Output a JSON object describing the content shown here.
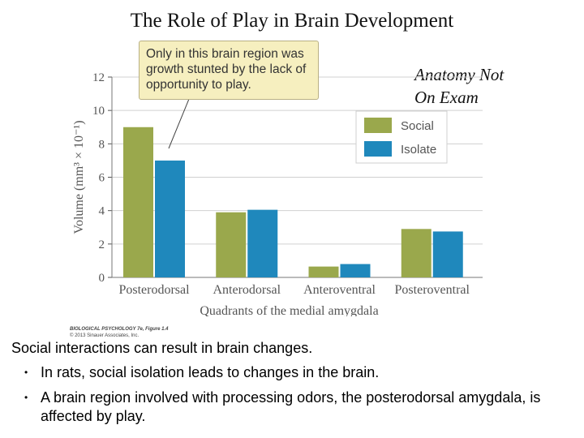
{
  "slide": {
    "title": "The Role of Play in Brain Development",
    "note_line1": "Anatomy  Not",
    "note_line2": "On Exam",
    "callout": "Only in this brain region was growth stunted by the lack of opportunity to play.",
    "credit_line1": "BIOLOGICAL PSYCHOLOGY 7e, Figure 1.4",
    "credit_line2": "© 2013 Sinauer Associates, Inc.",
    "caption": "Social interactions can result in brain changes.",
    "bullets": [
      "In rats, social isolation leads to changes in the brain.",
      "A brain region involved with processing odors, the posterodorsal amygdala, is affected by play."
    ]
  },
  "chart_data": {
    "type": "bar",
    "categories": [
      "Posterodorsal",
      "Anterodorsal",
      "Anteroventral",
      "Posteroventral"
    ],
    "series": [
      {
        "name": "Social",
        "values": [
          9.0,
          3.9,
          0.65,
          2.9
        ],
        "color": "#9aa84c"
      },
      {
        "name": "Isolate",
        "values": [
          7.0,
          4.05,
          0.8,
          2.75
        ],
        "color": "#1f88bc"
      }
    ],
    "xlabel": "Quadrants of the medial amygdala",
    "ylabel": "Volume (mm³ × 10⁻¹)",
    "yticks": [
      "0",
      "2",
      "4",
      "6",
      "8",
      "10",
      "12"
    ],
    "ylim": [
      0,
      12
    ],
    "grid": true,
    "legend": "top-right"
  }
}
